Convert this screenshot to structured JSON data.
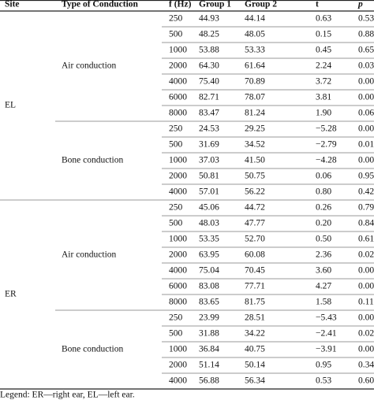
{
  "table": {
    "header": [
      "Site",
      "Type of Conduction",
      "f (Hz)",
      "Group 1",
      "Group 2",
      "t",
      "p"
    ],
    "sections": [
      {
        "site": "EL",
        "groups": [
          {
            "type": "Air conduction",
            "rows": [
              [
                "250",
                "44.93",
                "44.14",
                "0.63",
                "0.53"
              ],
              [
                "500",
                "48.25",
                "48.05",
                "0.15",
                "0.88"
              ],
              [
                "1000",
                "53.88",
                "53.33",
                "0.45",
                "0.65"
              ],
              [
                "2000",
                "64.30",
                "61.64",
                "2.24",
                "0.03"
              ],
              [
                "4000",
                "75.40",
                "70.89",
                "3.72",
                "0.00"
              ],
              [
                "6000",
                "82.71",
                "78.07",
                "3.81",
                "0.00"
              ],
              [
                "8000",
                "83.47",
                "81.24",
                "1.90",
                "0.06"
              ]
            ]
          },
          {
            "type": "Bone conduction",
            "rows": [
              [
                "250",
                "24.53",
                "29.25",
                "−5.28",
                "0.00"
              ],
              [
                "500",
                "31.69",
                "34.52",
                "−2.79",
                "0.01"
              ],
              [
                "1000",
                "37.03",
                "41.50",
                "−4.28",
                "0.00"
              ],
              [
                "2000",
                "50.81",
                "50.75",
                "0.06",
                "0.95"
              ],
              [
                "4000",
                "57.01",
                "56.22",
                "0.80",
                "0.42"
              ]
            ]
          }
        ]
      },
      {
        "site": "ER",
        "groups": [
          {
            "type": "Air conduction",
            "rows": [
              [
                "250",
                "45.06",
                "44.72",
                "0.26",
                "0.79"
              ],
              [
                "500",
                "48.03",
                "47.77",
                "0.20",
                "0.84"
              ],
              [
                "1000",
                "53.35",
                "52.70",
                "0.50",
                "0.61"
              ],
              [
                "2000",
                "63.95",
                "60.08",
                "2.36",
                "0.02"
              ],
              [
                "4000",
                "75.04",
                "70.45",
                "3.60",
                "0.00"
              ],
              [
                "6000",
                "83.08",
                "77.71",
                "4.27",
                "0.00"
              ],
              [
                "8000",
                "83.65",
                "81.75",
                "1.58",
                "0.11"
              ]
            ]
          },
          {
            "type": "Bone conduction",
            "rows": [
              [
                "250",
                "23.99",
                "28.51",
                "−5.43",
                "0.00"
              ],
              [
                "500",
                "31.88",
                "34.22",
                "−2.41",
                "0.02"
              ],
              [
                "1000",
                "36.84",
                "40.75",
                "−3.91",
                "0.00"
              ],
              [
                "2000",
                "51.14",
                "50.14",
                "0.95",
                "0.34"
              ],
              [
                "4000",
                "56.88",
                "56.34",
                "0.53",
                "0.60"
              ]
            ]
          }
        ]
      }
    ],
    "legend": "Legend: ER—right ear, EL—left ear."
  }
}
